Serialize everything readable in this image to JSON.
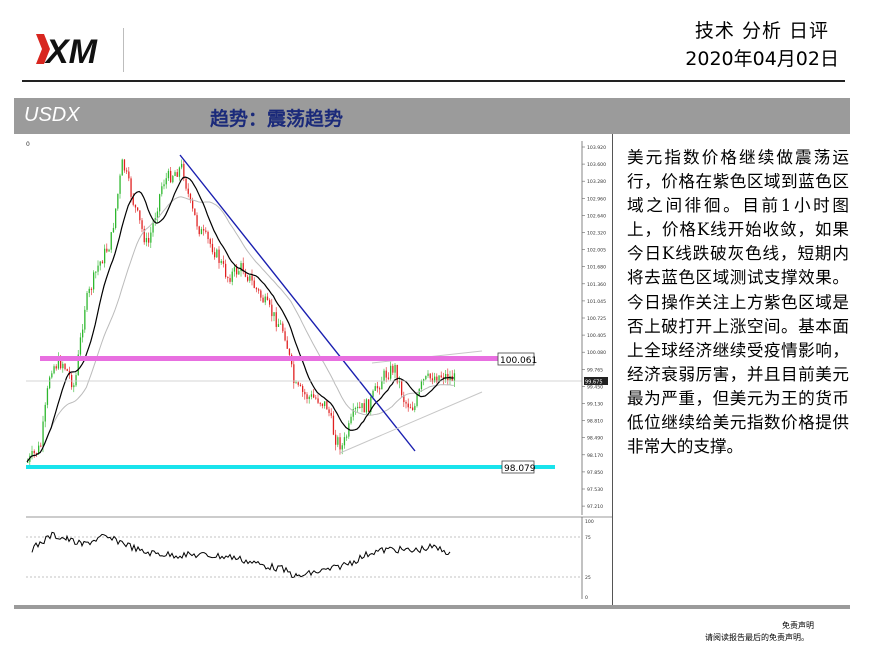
{
  "header": {
    "logo_text": "XM",
    "title": "技术 分析 日评",
    "date": "2020年04月02日"
  },
  "banner": {
    "symbol": "USDX",
    "trend": "趋势：震荡趋势"
  },
  "chart": {
    "corner_mark": "0",
    "price_ticks": [
      "103.920",
      "103.600",
      "103.280",
      "102.960",
      "102.640",
      "102.320",
      "102.005",
      "101.680",
      "101.360",
      "101.045",
      "100.725",
      "100.405",
      "100.080",
      "99.765",
      "99.450",
      "99.130",
      "98.810",
      "98.490",
      "98.170",
      "97.850",
      "97.530",
      "97.210"
    ],
    "current_price": "99.675",
    "resistance_label": "100.061",
    "support_label": "98.079",
    "osc_ticks": [
      "100",
      "75",
      "25",
      "0"
    ],
    "colors": {
      "resistance": "#e86fe0",
      "support": "#19e3ec",
      "trendline": "#1a1fb0",
      "bull": "#2db72d",
      "bear": "#e02020",
      "ma_fast": "#000000",
      "ma_slow": "#bbbbbb"
    }
  },
  "commentary": "美元指数价格继续做震荡运行，价格在紫色区域到蓝色区域之间徘徊。目前1小时图上，价格K线开始收敛，如果今日K线跌破灰色线，短期内将去蓝色区域测试支撑效果。今日操作关注上方紫色区域是否上破打开上涨空间。基本面上全球经济继续受疫情影响，经济衰弱厉害，并且目前美元最为严重，但美元为王的货币低位继续给美元指数价格提供非常大的支撑。",
  "disclaimer": {
    "title": "免责声明",
    "body": "请阅读报告最后的免责声明。"
  }
}
